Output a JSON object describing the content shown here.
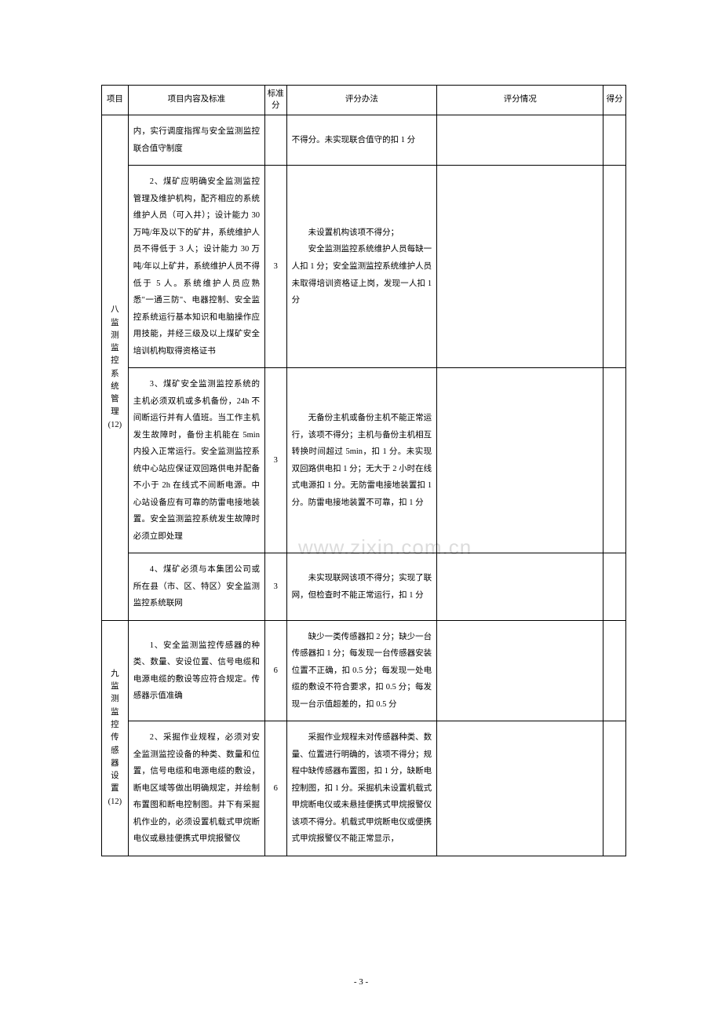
{
  "watermark": "www.zixin.com.cn",
  "footer": "- 3 -",
  "headers": {
    "project": "项目",
    "content": "项目内容及标准",
    "score": "标准分",
    "method": "评分办法",
    "status": "评分情况",
    "points": "得分"
  },
  "section8": {
    "title": "八监测监控系统管理（12）",
    "rows": [
      {
        "content": "内，实行调度指挥与安全监测监控联合值守制度",
        "score": "",
        "method": "不得分。未实现联合值守的扣 1 分"
      },
      {
        "content": "2、煤矿应明确安全监测监控管理及维护机构，配齐相应的系统维护人员（可入井）；设计能力 30 万吨/年及以下的矿井，系统维护人员不得低于 3 人；设计能力 30 万吨/年以上矿井，系统维护人员不得低于 5 人。系统维护人员应熟悉\"一通三防\"、电器控制、安全监控系统运行基本知识和电脑操作应用技能，并经三级及以上煤矿安全培训机构取得资格证书",
        "score": "3",
        "method": "未设置机构该项不得分；\n安全监测监控系统维护人员每缺一人扣 1 分；安全监测监控系统维护人员未取得培训资格证上岗，发现一人扣 1 分"
      },
      {
        "content": "3、煤矿安全监测监控系统的主机必须双机或多机备份，24h 不间断运行并有人值班。当工作主机发生故障时，备份主机能在 5min 内投入正常运行。安全监测监控系统中心站应保证双回路供电并配备不小于 2h 在线式不间断电源。中心站设备应有可靠的防雷电接地装置。安全监测监控系统发生故障时必须立即处理",
        "score": "3",
        "method": "无备份主机或备份主机不能正常运行，该项不得分；主机与备份主机相互转换时间超过 5min，扣 1 分。未实现双回路供电扣 1 分；无大于 2 小时在线式电源扣 1 分。无防雷电接地装置扣 1 分。防雷电接地装置不可靠，扣 1 分"
      },
      {
        "content": "4、煤矿必须与本集团公司或所在县（市、区、特区）安全监测监控系统联网",
        "score": "3",
        "method": "未实现联网该项不得分；实现了联网，但检查时不能正常运行，扣 1 分"
      }
    ]
  },
  "section9": {
    "title": "九监测监控传感器设置（12）",
    "rows": [
      {
        "content": "1、安全监测监控传感器的种类、数量、安设位置、信号电缆和电源电缆的敷设等应符合规定。传感器示值准确",
        "score": "6",
        "method": "缺少一类传感器扣 2 分；缺少一台传感器扣 1 分；每发现一台传感器安装位置不正确，扣 0.5 分；每发现一处电缆的敷设不符合要求，扣 0.5 分；每发现一台示值超差的，扣 0.5 分"
      },
      {
        "content": "2、采掘作业规程，必须对安全监测监控设备的种类、数量和位置，信号电缆和电源电缆的敷设，断电区域等做出明确规定，并绘制布置图和断电控制图。井下有采掘机作业的，必须设置机载式甲烷断电仪或悬挂便携式甲烷报警仪",
        "score": "6",
        "method": "采掘作业规程未对传感器种类、数量、位置进行明确的，该项不得分；规程中缺传感器布置图，扣 1 分，缺断电控制图，扣 1 分。采掘机未设置机载式甲烷断电仪或未悬挂便携式甲烷报警仪该项不得分。机载式甲烷断电仪或便携式甲烷报警仪不能正常显示，"
      }
    ]
  }
}
